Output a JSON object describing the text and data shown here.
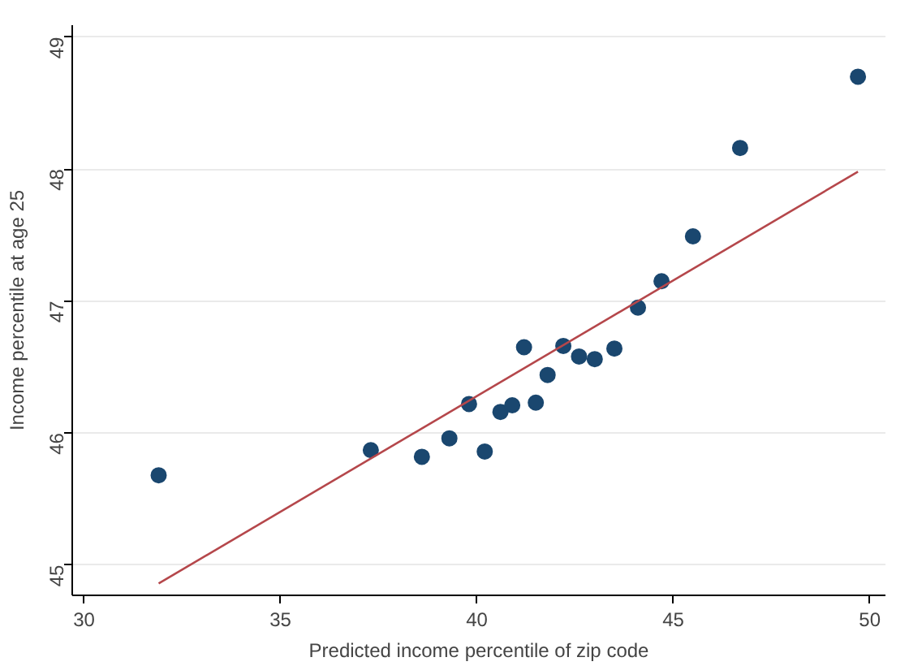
{
  "chart_data": {
    "type": "scatter",
    "xlabel": "Predicted income percentile of zip code",
    "ylabel": "Income percentile at age 25",
    "xlim": [
      29.7,
      50.4
    ],
    "ylim": [
      44.77,
      49.09
    ],
    "xticks": [
      30,
      35,
      40,
      45,
      50
    ],
    "yticks": [
      45,
      46,
      47,
      48,
      49
    ],
    "grid": "y",
    "series": [
      {
        "marker": "circle",
        "color": "#1a476f",
        "x": [
          31.9,
          37.3,
          38.6,
          39.3,
          39.8,
          40.2,
          40.6,
          40.9,
          41.2,
          41.5,
          41.8,
          42.2,
          42.6,
          43.0,
          43.5,
          44.1,
          44.7,
          45.5,
          46.7,
          49.7
        ],
        "values": [
          45.68,
          45.87,
          45.82,
          45.96,
          46.22,
          45.86,
          46.16,
          46.21,
          46.65,
          46.23,
          46.44,
          46.66,
          46.58,
          46.56,
          46.64,
          46.95,
          47.15,
          47.49,
          48.16,
          48.7
        ]
      },
      {
        "type": "line",
        "color": "#b5474b",
        "x": [
          31.9,
          49.7
        ],
        "values": [
          44.86,
          47.98
        ]
      }
    ]
  }
}
